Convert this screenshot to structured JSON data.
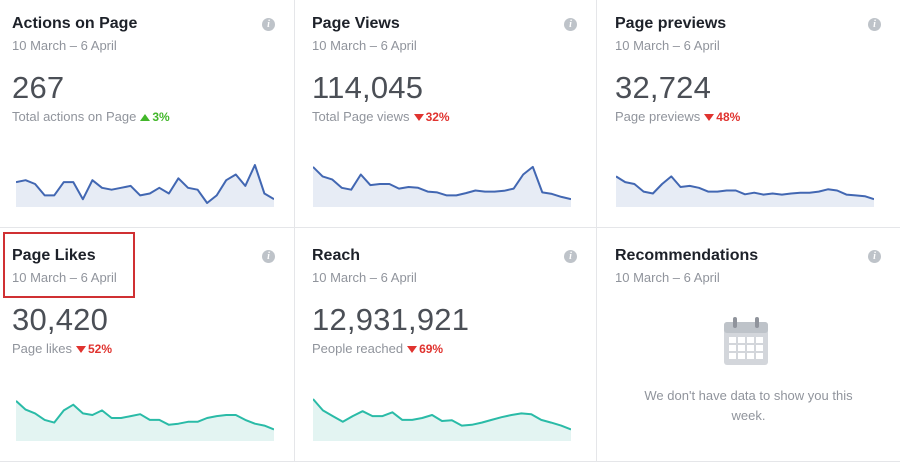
{
  "cards": [
    {
      "title": "Actions on Page",
      "date_range": "10 March – 6 April",
      "value": "267",
      "label": "Total actions on Page",
      "change": "3%",
      "direction": "up",
      "color": "#4267b2",
      "fill": "#e7ecf5",
      "trend": [
        0.55,
        0.6,
        0.5,
        0.2,
        0.2,
        0.55,
        0.55,
        0.1,
        0.6,
        0.4,
        0.35,
        0.4,
        0.45,
        0.2,
        0.25,
        0.4,
        0.25,
        0.65,
        0.4,
        0.35,
        0.0,
        0.2,
        0.6,
        0.75,
        0.45,
        1.0,
        0.25,
        0.1
      ]
    },
    {
      "title": "Page Views",
      "date_range": "10 March – 6 April",
      "value": "114,045",
      "label": "Total Page views",
      "change": "32%",
      "direction": "down",
      "color": "#4267b2",
      "fill": "#e7ecf5",
      "trend": [
        0.95,
        0.7,
        0.62,
        0.4,
        0.35,
        0.75,
        0.47,
        0.5,
        0.5,
        0.38,
        0.42,
        0.4,
        0.3,
        0.28,
        0.2,
        0.2,
        0.26,
        0.33,
        0.3,
        0.3,
        0.32,
        0.38,
        0.75,
        0.95,
        0.28,
        0.24,
        0.16,
        0.1
      ]
    },
    {
      "title": "Page previews",
      "date_range": "10 March – 6 April",
      "value": "32,724",
      "label": "Page previews",
      "change": "48%",
      "direction": "down",
      "color": "#4267b2",
      "fill": "#e7ecf5",
      "trend": [
        0.7,
        0.55,
        0.5,
        0.3,
        0.25,
        0.5,
        0.7,
        0.42,
        0.45,
        0.4,
        0.3,
        0.3,
        0.33,
        0.33,
        0.23,
        0.27,
        0.22,
        0.25,
        0.22,
        0.25,
        0.27,
        0.27,
        0.3,
        0.36,
        0.33,
        0.22,
        0.2,
        0.18,
        0.1
      ]
    },
    {
      "title": "Page Likes",
      "date_range": "10 March – 6 April",
      "value": "30,420",
      "label": "Page likes",
      "change": "52%",
      "direction": "down",
      "color": "#2abba7",
      "fill": "#e3f4f2",
      "trend": [
        0.95,
        0.72,
        0.62,
        0.45,
        0.38,
        0.7,
        0.85,
        0.62,
        0.58,
        0.7,
        0.5,
        0.5,
        0.55,
        0.6,
        0.45,
        0.45,
        0.32,
        0.35,
        0.4,
        0.4,
        0.5,
        0.55,
        0.58,
        0.58,
        0.45,
        0.35,
        0.3,
        0.2
      ]
    },
    {
      "title": "Reach",
      "date_range": "10 March – 6 April",
      "value": "12,931,921",
      "label": "People reached",
      "change": "69%",
      "direction": "down",
      "color": "#2abba7",
      "fill": "#e3f4f2",
      "trend": [
        1.0,
        0.7,
        0.55,
        0.4,
        0.55,
        0.68,
        0.55,
        0.55,
        0.65,
        0.45,
        0.45,
        0.5,
        0.58,
        0.42,
        0.44,
        0.3,
        0.32,
        0.38,
        0.45,
        0.52,
        0.58,
        0.62,
        0.6,
        0.45,
        0.38,
        0.3,
        0.2
      ]
    }
  ],
  "recommendations": {
    "title": "Recommendations",
    "date_range": "10 March – 6 April",
    "empty_message": "We don't have data to show you this week.",
    "icon": "calendar-icon"
  },
  "info_icon_glyph": "i"
}
